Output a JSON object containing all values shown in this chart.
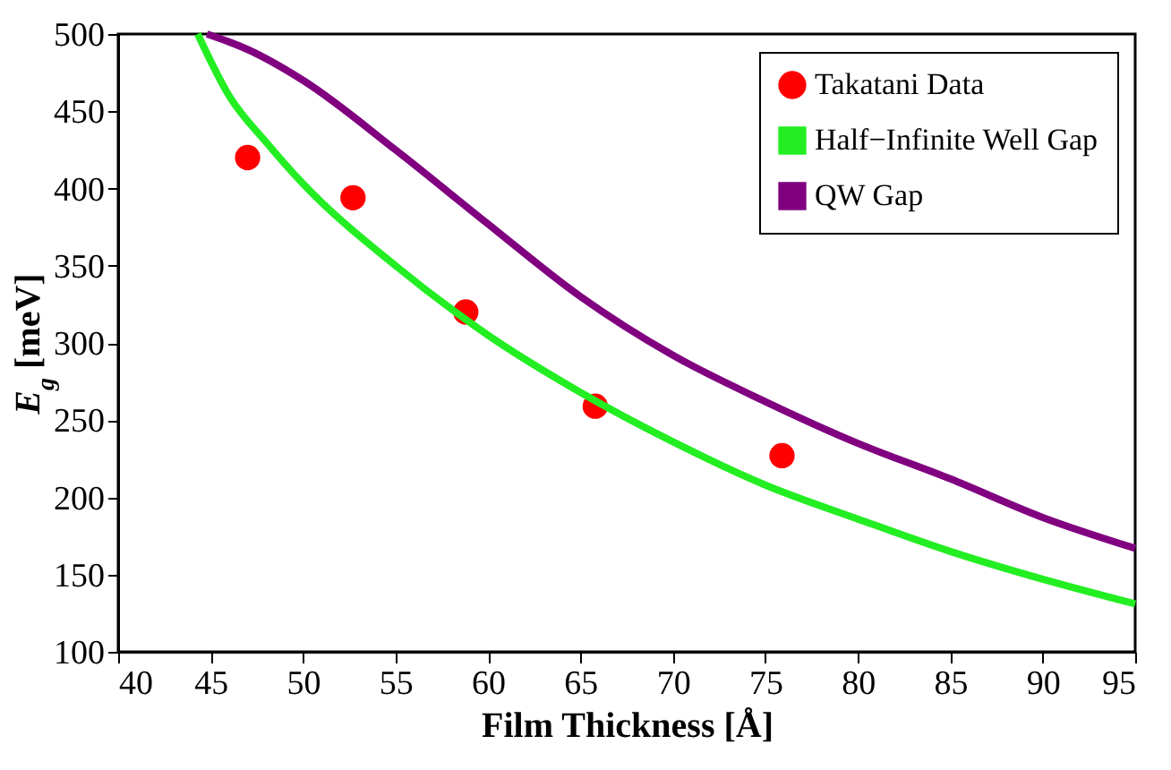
{
  "chart_data": {
    "type": "line",
    "xlabel": "Film Thickness [Å]",
    "ylabel": "E$_{g}$ [meV]",
    "xlim": [
      40,
      95
    ],
    "xticks": [
      40,
      45,
      50,
      55,
      60,
      65,
      70,
      75,
      80,
      85,
      90,
      95
    ],
    "ylim": [
      100,
      500
    ],
    "yticks": [
      100,
      150,
      200,
      250,
      300,
      350,
      400,
      450,
      500
    ],
    "grid": false,
    "legend": "top right",
    "series": [
      {
        "name": "Takatani Data",
        "type": "scatter",
        "marker": "circle",
        "color": "#ff0000",
        "x": [
          47,
          52.7,
          58.8,
          65.8,
          75.9
        ],
        "values": [
          420,
          394,
          320,
          259,
          227
        ]
      },
      {
        "name": "Half−Infinite Well Gap",
        "type": "line",
        "color": "#22ee22",
        "x": [
          44.3,
          46,
          48,
          50,
          55,
          60,
          65,
          70,
          75,
          80,
          85,
          90,
          95
        ],
        "values": [
          500,
          460,
          430,
          403,
          350,
          305,
          268,
          236,
          208,
          186,
          165,
          147,
          131
        ]
      },
      {
        "name": "QW Gap",
        "type": "line",
        "color": "#800080",
        "x": [
          44.8,
          47,
          50,
          55,
          60,
          65,
          70,
          75,
          80,
          85,
          90,
          95
        ],
        "values": [
          500,
          490,
          470,
          425,
          377,
          330,
          292,
          262,
          235,
          212,
          187,
          167
        ]
      }
    ]
  }
}
